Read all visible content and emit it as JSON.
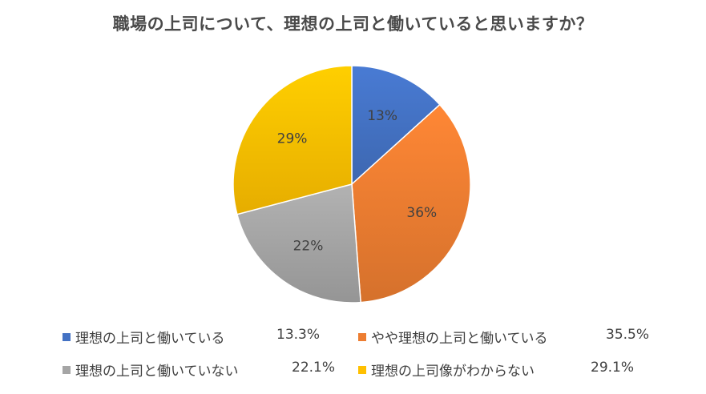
{
  "chart_data": {
    "type": "pie",
    "title": "職場の上司について、理想の上司と働いていると思いますか？",
    "slices": [
      {
        "label": "理想の上司と働いている",
        "value": 13.3,
        "data_label": "13%",
        "legend_value": "13.3%",
        "color": "#4472c4"
      },
      {
        "label": "やや理想の上司と働いている",
        "value": 35.5,
        "data_label": "36%",
        "legend_value": "35.5%",
        "color": "#ed7d31"
      },
      {
        "label": "理想の上司と働いていない",
        "value": 22.1,
        "data_label": "22%",
        "legend_value": "22.1%",
        "color": "#a5a5a5"
      },
      {
        "label": "理想の上司像がわからない",
        "value": 29.1,
        "data_label": "29%",
        "legend_value": "29.1%",
        "color": "#ffc000"
      }
    ],
    "start_angle_deg": 0,
    "direction": "clockwise",
    "legend_position": "bottom"
  }
}
